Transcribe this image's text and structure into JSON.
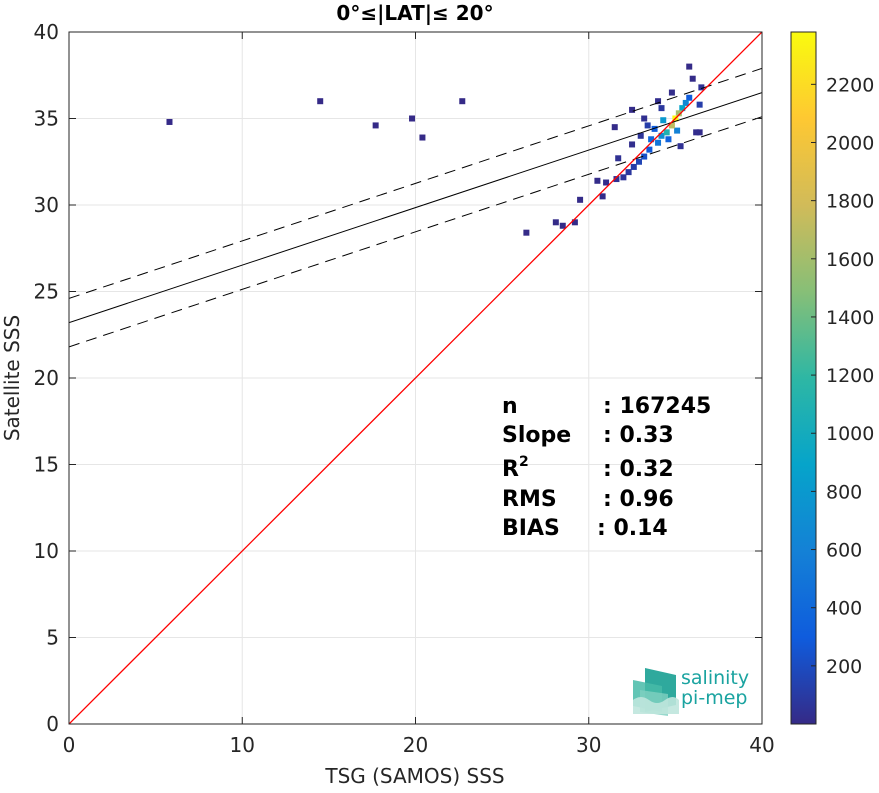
{
  "chart_data": {
    "type": "scatter",
    "title": "0°≤|LAT|≤ 20°",
    "xlabel": "TSG (SAMOS) SSS",
    "ylabel": "Satellite SSS",
    "xlim": [
      0,
      40
    ],
    "ylim": [
      0,
      40
    ],
    "xticks": [
      "0",
      "10",
      "20",
      "30",
      "40"
    ],
    "yticks": [
      "0",
      "5",
      "10",
      "15",
      "20",
      "25",
      "30",
      "35",
      "40"
    ],
    "grid": true,
    "colorbar": {
      "min": 0,
      "max": 2380,
      "ticks": [
        "200",
        "400",
        "600",
        "800",
        "1000",
        "1200",
        "1400",
        "1600",
        "1800",
        "2000",
        "2200"
      ],
      "colormap": "parula"
    },
    "reference_line": {
      "name": "1:1",
      "color": "#ff0000",
      "x": [
        0,
        40
      ],
      "y": [
        0,
        40
      ]
    },
    "fit_line": {
      "x": [
        0,
        40
      ],
      "y": [
        23.2,
        36.5
      ]
    },
    "fit_bounds": {
      "upper": [
        24.6,
        37.9
      ],
      "lower": [
        21.8,
        35.1
      ]
    },
    "density_points": [
      [
        35.0,
        35.0,
        2380
      ],
      [
        34.8,
        34.6,
        1700
      ],
      [
        35.2,
        35.3,
        1600
      ],
      [
        34.5,
        34.2,
        1100
      ],
      [
        35.4,
        35.6,
        900
      ],
      [
        34.2,
        34.0,
        700
      ],
      [
        35.6,
        35.9,
        650
      ],
      [
        34.0,
        33.6,
        500
      ],
      [
        33.8,
        34.4,
        300
      ],
      [
        34.6,
        33.8,
        350
      ],
      [
        35.8,
        36.2,
        300
      ],
      [
        33.5,
        33.2,
        280
      ],
      [
        33.2,
        32.8,
        220
      ],
      [
        32.9,
        32.5,
        160
      ],
      [
        32.6,
        32.2,
        110
      ],
      [
        32.3,
        31.9,
        80
      ],
      [
        32.0,
        31.6,
        60
      ],
      [
        31.6,
        31.5,
        40
      ],
      [
        31.0,
        31.3,
        20
      ],
      [
        30.5,
        31.4,
        10
      ],
      [
        34.2,
        35.6,
        80
      ],
      [
        33.2,
        35.0,
        30
      ],
      [
        34.0,
        36.0,
        20
      ],
      [
        34.8,
        36.5,
        15
      ],
      [
        35.3,
        33.4,
        40
      ],
      [
        36.2,
        34.2,
        20
      ],
      [
        33.4,
        34.6,
        120
      ],
      [
        33.0,
        34.0,
        60
      ],
      [
        32.5,
        33.5,
        25
      ],
      [
        36.5,
        36.8,
        50
      ],
      [
        36.4,
        35.8,
        120
      ],
      [
        33.6,
        33.8,
        400
      ],
      [
        34.3,
        34.9,
        800
      ],
      [
        35.1,
        34.3,
        600
      ],
      [
        29.2,
        29.0,
        8
      ],
      [
        28.5,
        28.8,
        5
      ],
      [
        28.1,
        29.0,
        5
      ],
      [
        29.5,
        30.3,
        8
      ],
      [
        30.8,
        30.5,
        10
      ],
      [
        31.7,
        32.7,
        40
      ],
      [
        26.4,
        28.4,
        3
      ],
      [
        35.8,
        38.0,
        3
      ],
      [
        36.0,
        37.3,
        5
      ],
      [
        5.8,
        34.8,
        2
      ],
      [
        14.5,
        36.0,
        1
      ],
      [
        17.7,
        34.6,
        1
      ],
      [
        19.8,
        35.0,
        1
      ],
      [
        20.4,
        33.9,
        1
      ],
      [
        22.7,
        36.0,
        1
      ],
      [
        31.5,
        34.5,
        8
      ],
      [
        32.5,
        35.5,
        6
      ],
      [
        36.4,
        34.2,
        12
      ]
    ],
    "stats": [
      {
        "label": "n",
        "value": ": 167245"
      },
      {
        "label": "Slope",
        "value": ": 0.33"
      },
      {
        "label": "R",
        "sup": "2",
        "value": ": 0.32"
      },
      {
        "label": "RMS",
        "value": ": 0.96"
      },
      {
        "label": "BIAS",
        "value": ": 0.14"
      }
    ]
  },
  "logo": {
    "line1": "salinity",
    "line2": "pi-mep",
    "accent": "#1aa3a0",
    "dark": "#1f4e5f"
  },
  "colors": {
    "grid": "#e6e6e6",
    "axis": "#262626",
    "one_to_one": "#ff0000",
    "fit": "#000000"
  }
}
